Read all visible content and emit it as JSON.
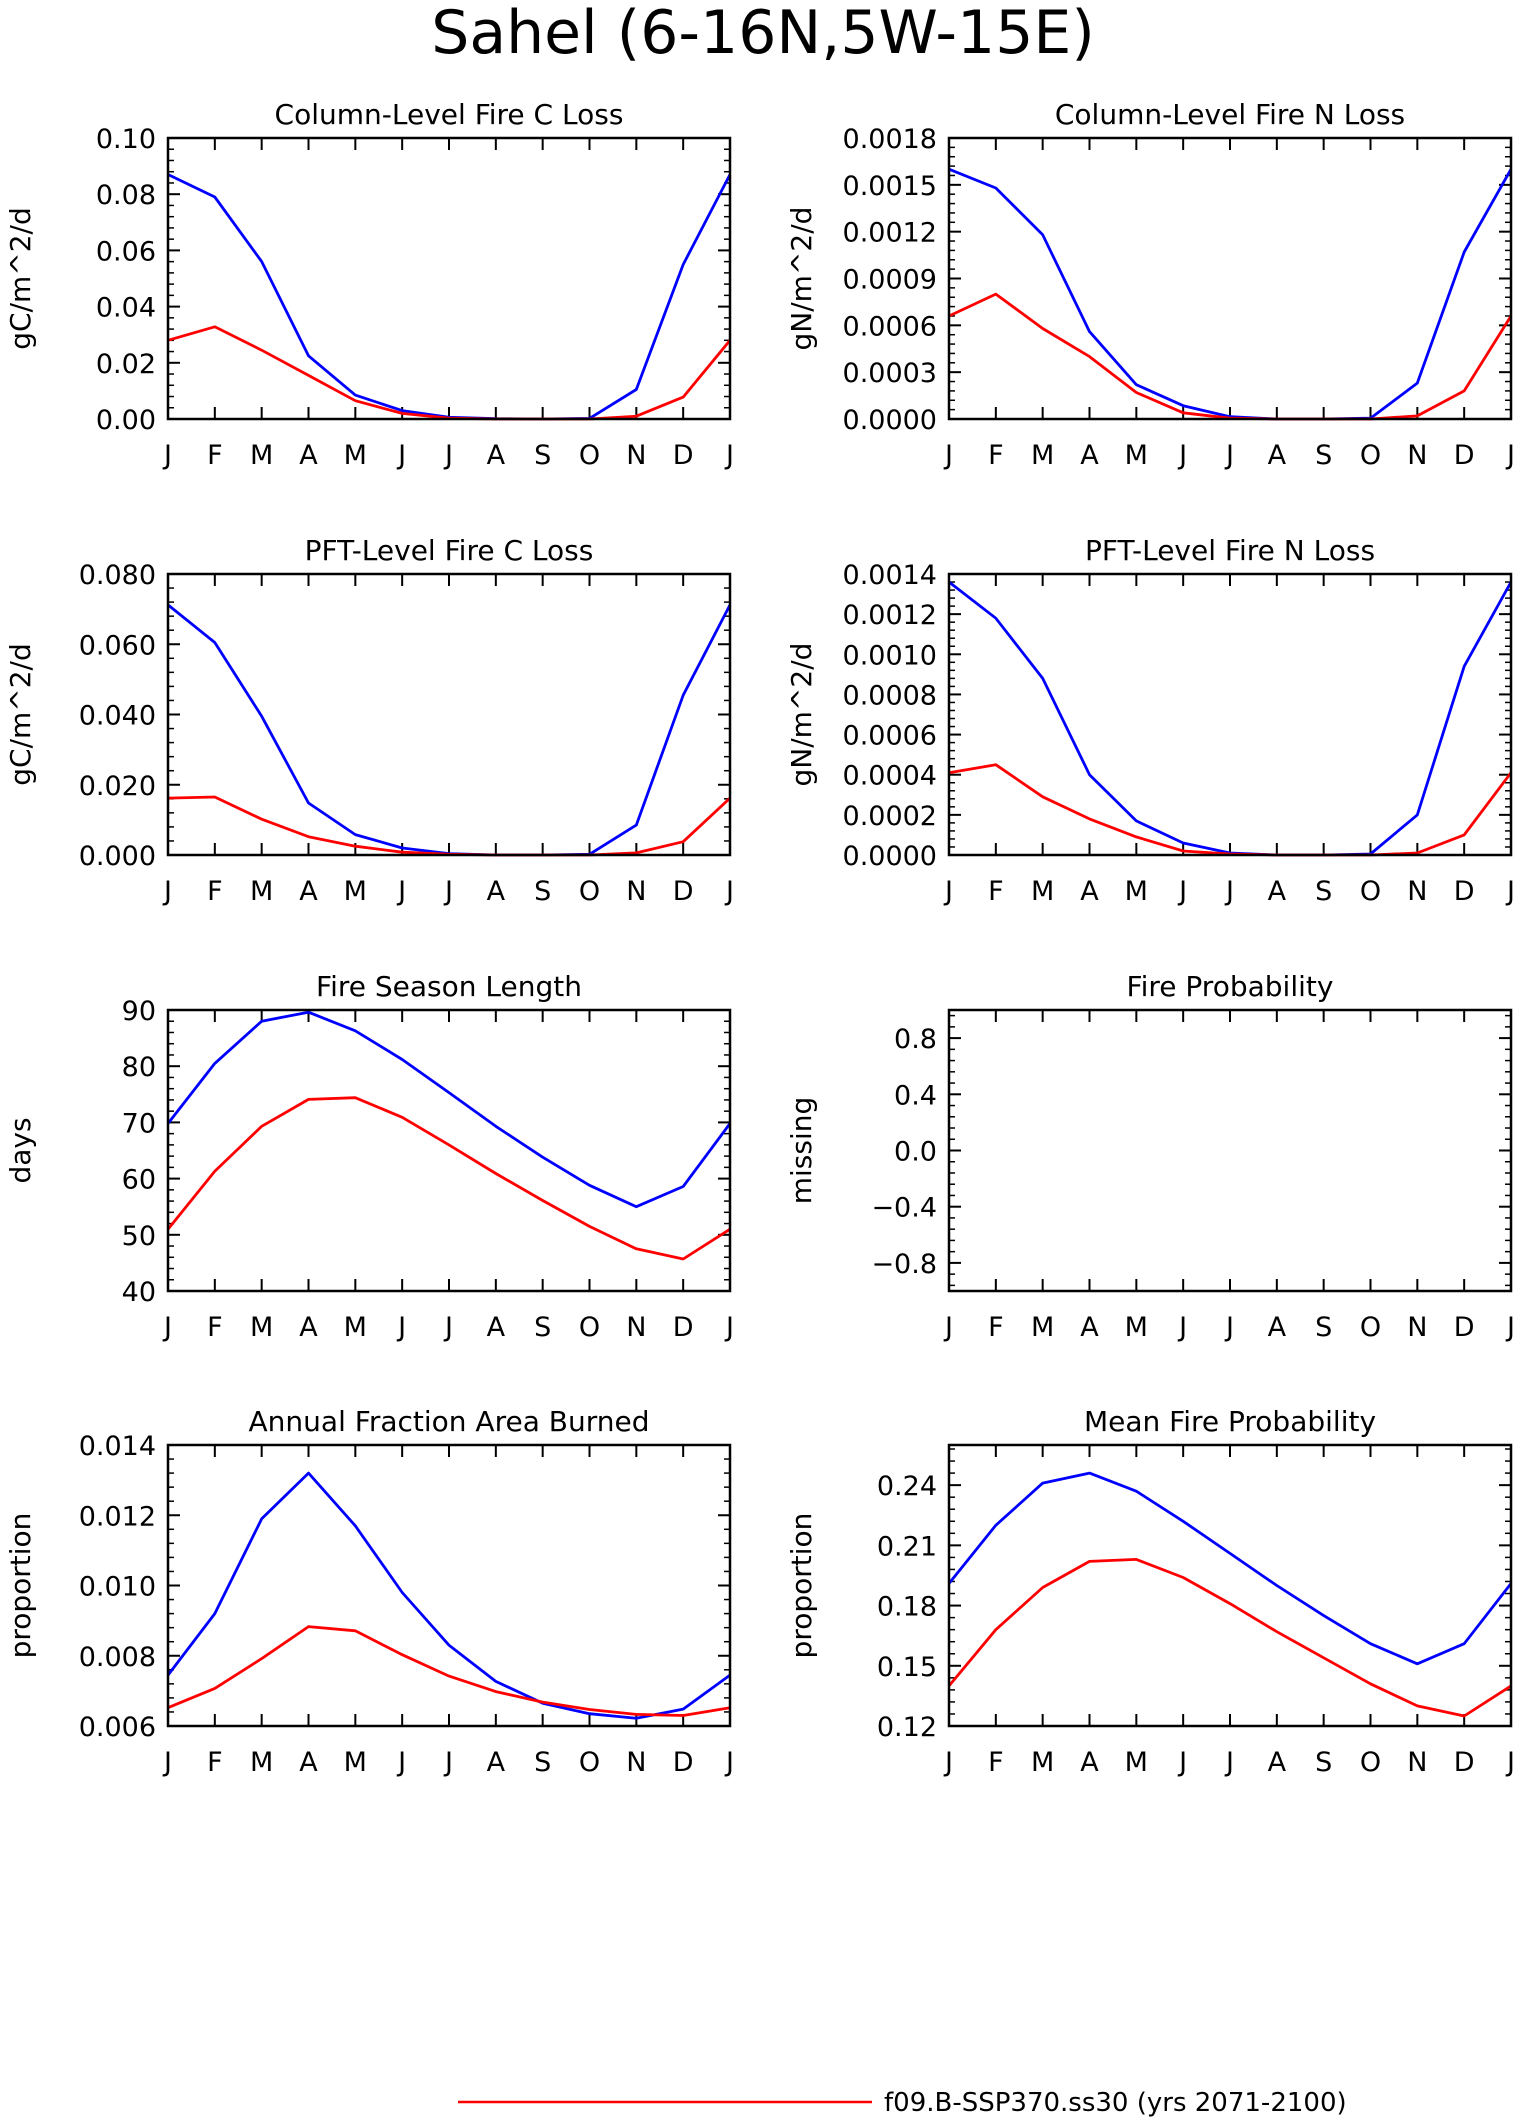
{
  "figure_title": "Sahel (6-16N,5W-15E)",
  "colors": {
    "series_1": "#0000ff",
    "series_2": "#ff0000"
  },
  "legend": {
    "entries": [
      {
        "label": "f09.B-SSP370.ss30 (yrs 2071-2100)",
        "color": "#ff0000"
      }
    ]
  },
  "chart_data": [
    {
      "type": "line",
      "title": "Column-Level Fire C Loss",
      "ylabel": "gC/m^2/d",
      "xlabel": "",
      "ylim": [
        0,
        0.1
      ],
      "yticks": [
        0.0,
        0.02,
        0.04,
        0.06,
        0.08,
        0.1
      ],
      "ytick_labels": [
        "0.00",
        "0.02",
        "0.04",
        "0.06",
        "0.08",
        "0.10"
      ],
      "categories": [
        "J",
        "F",
        "M",
        "A",
        "M",
        "J",
        "J",
        "A",
        "S",
        "O",
        "N",
        "D",
        "J"
      ],
      "series": [
        {
          "color": "#0000ff",
          "values": [
            0.087,
            0.079,
            0.056,
            0.0225,
            0.0085,
            0.003,
            0.0006,
            0.0001,
            0.0,
            0.0002,
            0.0105,
            0.055,
            0.087
          ]
        },
        {
          "color": "#ff0000",
          "values": [
            0.028,
            0.0328,
            0.0245,
            0.0155,
            0.0065,
            0.002,
            0.0003,
            0.0,
            0.0,
            0.0,
            0.001,
            0.0078,
            0.028
          ]
        }
      ]
    },
    {
      "type": "line",
      "title": "Column-Level Fire N Loss",
      "ylabel": "gN/m^2/d",
      "xlabel": "",
      "ylim": [
        0,
        0.0018
      ],
      "yticks": [
        0.0,
        0.0003,
        0.0006,
        0.0009,
        0.0012,
        0.0015,
        0.0018
      ],
      "ytick_labels": [
        "0.0000",
        "0.0003",
        "0.0006",
        "0.0009",
        "0.0012",
        "0.0015",
        "0.0018"
      ],
      "categories": [
        "J",
        "F",
        "M",
        "A",
        "M",
        "J",
        "J",
        "A",
        "S",
        "O",
        "N",
        "D",
        "J"
      ],
      "series": [
        {
          "color": "#0000ff",
          "values": [
            0.0016,
            0.00148,
            0.00118,
            0.00056,
            0.00022,
            8.5e-05,
            1.5e-05,
            0.0,
            0.0,
            5e-06,
            0.00023,
            0.00107,
            0.0016
          ]
        },
        {
          "color": "#ff0000",
          "values": [
            0.00066,
            0.0008,
            0.00058,
            0.0004,
            0.00017,
            4e-05,
            5e-06,
            0.0,
            0.0,
            0.0,
            2e-05,
            0.00018,
            0.00066
          ]
        }
      ]
    },
    {
      "type": "line",
      "title": "PFT-Level Fire C Loss",
      "ylabel": "gC/m^2/d",
      "xlabel": "",
      "ylim": [
        0,
        0.08
      ],
      "yticks": [
        0.0,
        0.02,
        0.04,
        0.06,
        0.08
      ],
      "ytick_labels": [
        "0.000",
        "0.020",
        "0.040",
        "0.060",
        "0.080"
      ],
      "categories": [
        "J",
        "F",
        "M",
        "A",
        "M",
        "J",
        "J",
        "A",
        "S",
        "O",
        "N",
        "D",
        "J"
      ],
      "series": [
        {
          "color": "#0000ff",
          "values": [
            0.0712,
            0.0605,
            0.0395,
            0.0148,
            0.0058,
            0.002,
            0.0004,
            0.0,
            0.0,
            0.0002,
            0.0085,
            0.0455,
            0.0712
          ]
        },
        {
          "color": "#ff0000",
          "values": [
            0.0162,
            0.0165,
            0.0102,
            0.0052,
            0.0025,
            0.0008,
            0.0002,
            0.0,
            0.0,
            0.0,
            0.0006,
            0.0038,
            0.0162
          ]
        }
      ]
    },
    {
      "type": "line",
      "title": "PFT-Level Fire N Loss",
      "ylabel": "gN/m^2/d",
      "xlabel": "",
      "ylim": [
        0,
        0.0014
      ],
      "yticks": [
        0.0,
        0.0002,
        0.0004,
        0.0006,
        0.0008,
        0.001,
        0.0012,
        0.0014
      ],
      "ytick_labels": [
        "0.0000",
        "0.0002",
        "0.0004",
        "0.0006",
        "0.0008",
        "0.0010",
        "0.0012",
        "0.0014"
      ],
      "categories": [
        "J",
        "F",
        "M",
        "A",
        "M",
        "J",
        "J",
        "A",
        "S",
        "O",
        "N",
        "D",
        "J"
      ],
      "series": [
        {
          "color": "#0000ff",
          "values": [
            0.00136,
            0.00118,
            0.00088,
            0.0004,
            0.00017,
            6e-05,
            1e-05,
            0.0,
            0.0,
            5e-06,
            0.0002,
            0.00094,
            0.00136
          ]
        },
        {
          "color": "#ff0000",
          "values": [
            0.00041,
            0.00045,
            0.00029,
            0.00018,
            9e-05,
            2e-05,
            5e-06,
            0.0,
            0.0,
            0.0,
            1e-05,
            0.0001,
            0.00041
          ]
        }
      ]
    },
    {
      "type": "line",
      "title": "Fire Season Length",
      "ylabel": "days",
      "xlabel": "",
      "ylim": [
        40,
        90
      ],
      "yticks": [
        40,
        50,
        60,
        70,
        80,
        90
      ],
      "ytick_labels": [
        "40",
        "50",
        "60",
        "70",
        "80",
        "90"
      ],
      "categories": [
        "J",
        "F",
        "M",
        "A",
        "M",
        "J",
        "J",
        "A",
        "S",
        "O",
        "N",
        "D",
        "J"
      ],
      "series": [
        {
          "color": "#0000ff",
          "values": [
            69.8,
            80.5,
            88.0,
            89.6,
            86.3,
            81.2,
            75.3,
            69.3,
            63.8,
            58.8,
            55.0,
            58.6,
            69.8
          ]
        },
        {
          "color": "#ff0000",
          "values": [
            51.0,
            61.3,
            69.3,
            74.1,
            74.4,
            70.9,
            66.0,
            60.9,
            56.1,
            51.5,
            47.5,
            45.7,
            51.0
          ]
        }
      ]
    },
    {
      "type": "line",
      "title": "Fire Probability",
      "ylabel": "missing",
      "xlabel": "",
      "ylim": [
        -1,
        1
      ],
      "yticks": [
        -0.8,
        -0.4,
        0.0,
        0.4,
        0.8
      ],
      "ytick_labels": [
        "−0.8",
        "−0.4",
        "0.0",
        "0.4",
        "0.8"
      ],
      "categories": [
        "J",
        "F",
        "M",
        "A",
        "M",
        "J",
        "J",
        "A",
        "S",
        "O",
        "N",
        "D",
        "J"
      ],
      "series": []
    },
    {
      "type": "line",
      "title": "Annual Fraction Area Burned",
      "ylabel": "proportion",
      "xlabel": "",
      "ylim": [
        0.006,
        0.014
      ],
      "yticks": [
        0.006,
        0.008,
        0.01,
        0.012,
        0.014
      ],
      "ytick_labels": [
        "0.006",
        "0.008",
        "0.010",
        "0.012",
        "0.014"
      ],
      "categories": [
        "J",
        "F",
        "M",
        "A",
        "M",
        "J",
        "J",
        "A",
        "S",
        "O",
        "N",
        "D",
        "J"
      ],
      "series": [
        {
          "color": "#0000ff",
          "values": [
            0.00745,
            0.0092,
            0.0119,
            0.0132,
            0.0117,
            0.0098,
            0.0083,
            0.00727,
            0.00665,
            0.00635,
            0.00622,
            0.00648,
            0.00745
          ]
        },
        {
          "color": "#ff0000",
          "values": [
            0.00652,
            0.00707,
            0.00792,
            0.00883,
            0.00871,
            0.00803,
            0.00742,
            0.00698,
            0.00668,
            0.00647,
            0.00633,
            0.0063,
            0.00652
          ]
        }
      ]
    },
    {
      "type": "line",
      "title": "Mean Fire Probability",
      "ylabel": "proportion",
      "xlabel": "",
      "ylim": [
        0.12,
        0.26
      ],
      "yticks": [
        0.12,
        0.15,
        0.18,
        0.21,
        0.24
      ],
      "ytick_labels": [
        "0.12",
        "0.15",
        "0.18",
        "0.21",
        "0.24"
      ],
      "categories": [
        "J",
        "F",
        "M",
        "A",
        "M",
        "J",
        "J",
        "A",
        "S",
        "O",
        "N",
        "D",
        "J"
      ],
      "series": [
        {
          "color": "#0000ff",
          "values": [
            0.191,
            0.22,
            0.241,
            0.246,
            0.237,
            0.222,
            0.206,
            0.19,
            0.175,
            0.161,
            0.151,
            0.161,
            0.191
          ]
        },
        {
          "color": "#ff0000",
          "values": [
            0.14,
            0.168,
            0.189,
            0.202,
            0.203,
            0.194,
            0.181,
            0.167,
            0.154,
            0.141,
            0.13,
            0.125,
            0.14
          ]
        }
      ]
    }
  ]
}
